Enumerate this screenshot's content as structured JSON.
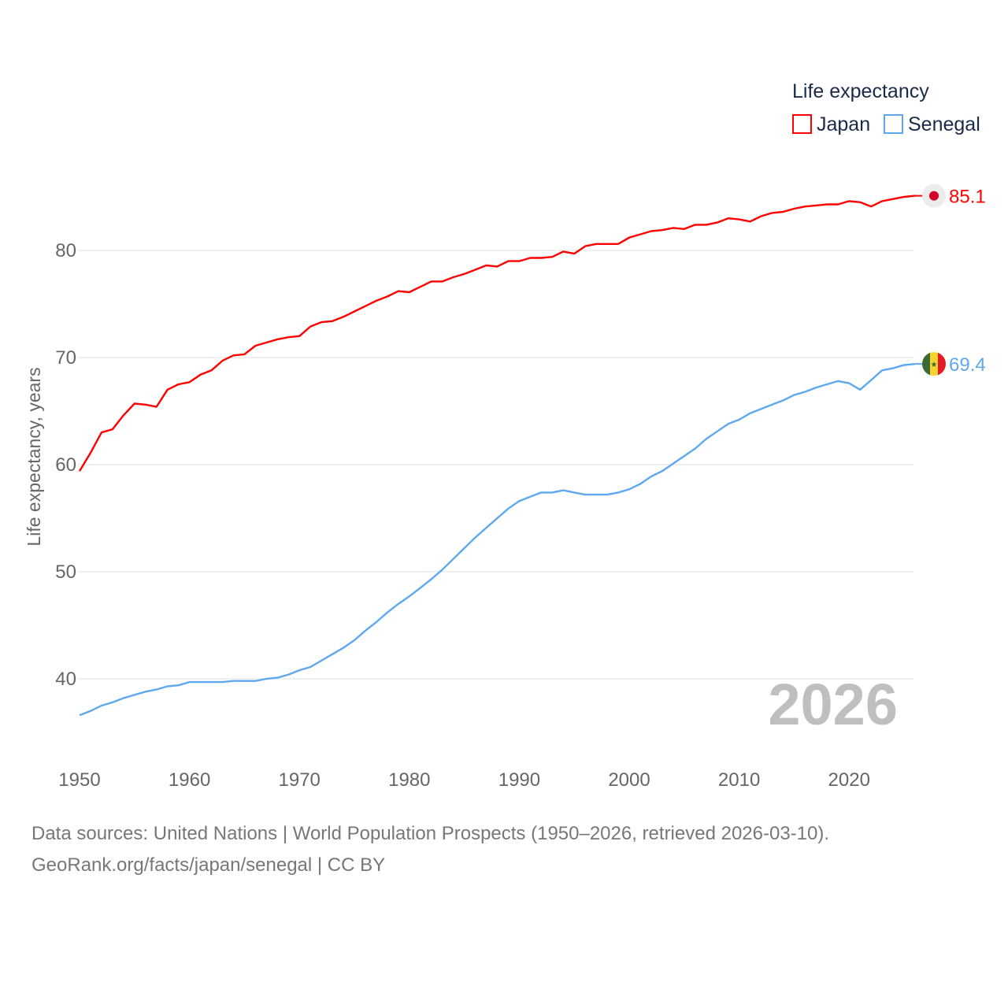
{
  "chart_data": {
    "type": "line",
    "title": "",
    "ylabel": "Life expectancy, years",
    "xlabel": "",
    "xlim": [
      1950,
      2026
    ],
    "ylim": [
      35,
      86
    ],
    "y_ticks": [
      "40",
      "50",
      "60",
      "70",
      "80"
    ],
    "x_ticks": [
      "1950",
      "1960",
      "1970",
      "1980",
      "1990",
      "2000",
      "2010",
      "2020"
    ],
    "grid": true,
    "legend": {
      "title": "Life expectancy",
      "placement": "top-right"
    },
    "current_year_label": "2026",
    "x": [
      1950,
      1951,
      1952,
      1953,
      1954,
      1955,
      1956,
      1957,
      1958,
      1959,
      1960,
      1961,
      1962,
      1963,
      1964,
      1965,
      1966,
      1967,
      1968,
      1969,
      1970,
      1971,
      1972,
      1973,
      1974,
      1975,
      1976,
      1977,
      1978,
      1979,
      1980,
      1981,
      1982,
      1983,
      1984,
      1985,
      1986,
      1987,
      1988,
      1989,
      1990,
      1991,
      1992,
      1993,
      1994,
      1995,
      1996,
      1997,
      1998,
      1999,
      2000,
      2001,
      2002,
      2003,
      2004,
      2005,
      2006,
      2007,
      2008,
      2009,
      2010,
      2011,
      2012,
      2013,
      2014,
      2015,
      2016,
      2017,
      2018,
      2019,
      2020,
      2021,
      2022,
      2023,
      2024,
      2025,
      2026
    ],
    "series": [
      {
        "name": "Japan",
        "color": "#ff0000",
        "end_label": "85.1",
        "flag": "japan-flag",
        "values": [
          59.4,
          61.1,
          63.0,
          63.3,
          64.6,
          65.7,
          65.6,
          65.4,
          67.0,
          67.5,
          67.7,
          68.4,
          68.8,
          69.7,
          70.2,
          70.3,
          71.1,
          71.4,
          71.7,
          71.9,
          72.0,
          72.9,
          73.3,
          73.4,
          73.8,
          74.3,
          74.8,
          75.3,
          75.7,
          76.2,
          76.1,
          76.6,
          77.1,
          77.1,
          77.5,
          77.8,
          78.2,
          78.6,
          78.5,
          79.0,
          79.0,
          79.3,
          79.3,
          79.4,
          79.9,
          79.7,
          80.4,
          80.6,
          80.6,
          80.6,
          81.2,
          81.5,
          81.8,
          81.9,
          82.1,
          82.0,
          82.4,
          82.4,
          82.6,
          83.0,
          82.9,
          82.7,
          83.2,
          83.5,
          83.6,
          83.9,
          84.1,
          84.2,
          84.3,
          84.3,
          84.6,
          84.5,
          84.1,
          84.6,
          84.8,
          85.0,
          85.1
        ]
      },
      {
        "name": "Senegal",
        "color": "#5ea8ef",
        "end_label": "69.4",
        "flag": "senegal-flag",
        "values": [
          36.6,
          37.0,
          37.5,
          37.8,
          38.2,
          38.5,
          38.8,
          39.0,
          39.3,
          39.4,
          39.7,
          39.7,
          39.7,
          39.7,
          39.8,
          39.8,
          39.8,
          40.0,
          40.1,
          40.4,
          40.8,
          41.1,
          41.7,
          42.3,
          42.9,
          43.6,
          44.5,
          45.3,
          46.2,
          47.0,
          47.7,
          48.5,
          49.3,
          50.2,
          51.2,
          52.2,
          53.2,
          54.1,
          55.0,
          55.9,
          56.6,
          57.0,
          57.4,
          57.4,
          57.6,
          57.4,
          57.2,
          57.2,
          57.2,
          57.4,
          57.7,
          58.2,
          58.9,
          59.4,
          60.1,
          60.8,
          61.5,
          62.4,
          63.1,
          63.8,
          64.2,
          64.8,
          65.2,
          65.6,
          66.0,
          66.5,
          66.8,
          67.2,
          67.5,
          67.8,
          67.6,
          67.0,
          67.9,
          68.8,
          69.0,
          69.3,
          69.4
        ]
      }
    ]
  },
  "footer": {
    "line1": "Data sources: United Nations | World Population Prospects (1950–2026, retrieved 2026-03-10).",
    "line2": "GeoRank.org/facts/japan/senegal | CC BY"
  }
}
